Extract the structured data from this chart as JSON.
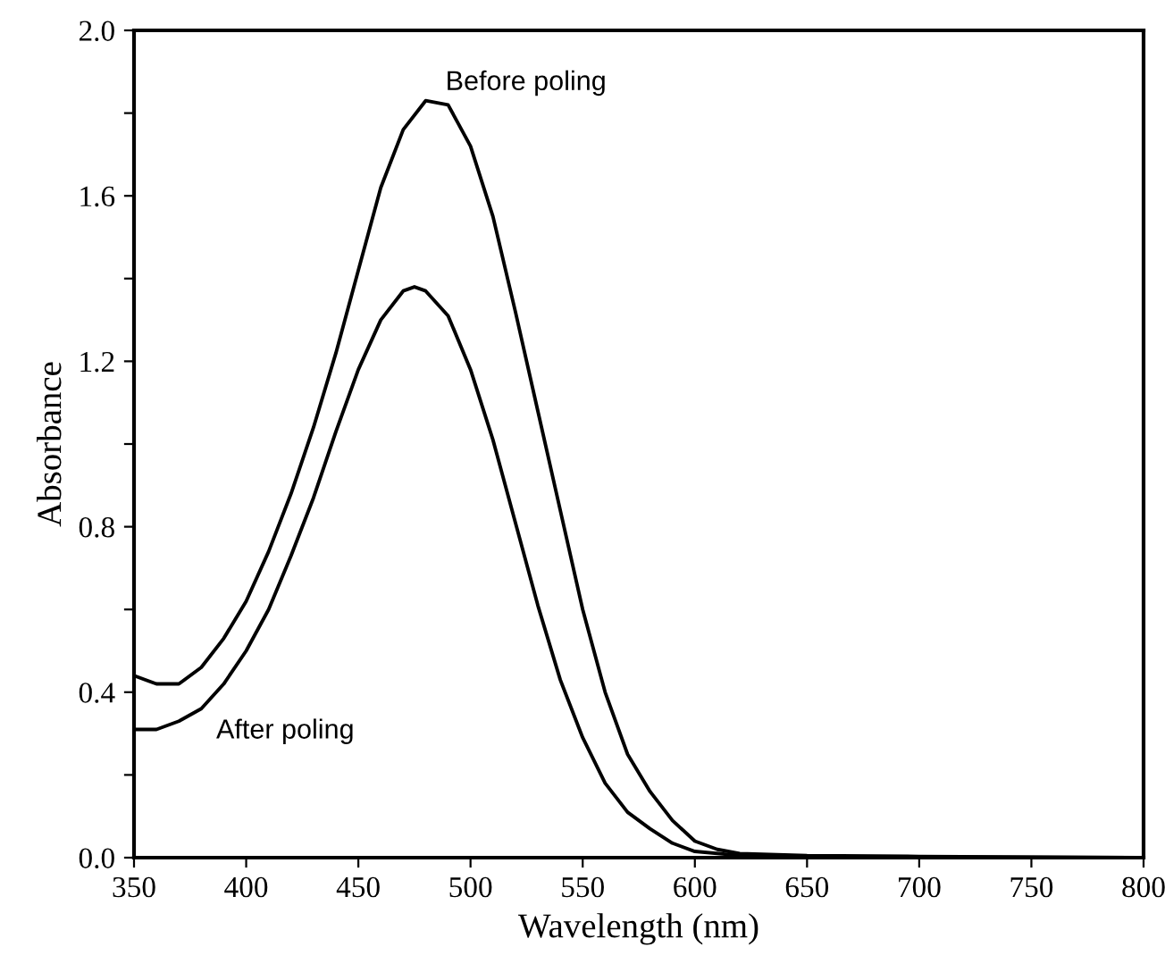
{
  "chart_data": {
    "type": "line",
    "xlabel": "Wavelength (nm)",
    "ylabel": "Absorbance",
    "xlim": [
      350,
      800
    ],
    "xticks": [
      350,
      400,
      450,
      500,
      550,
      600,
      650,
      700,
      750,
      800
    ],
    "ylim": [
      0,
      2.0
    ],
    "yticks": [
      {
        "value": 0,
        "label": "0.0"
      },
      {
        "value": 0.2,
        "label": null
      },
      {
        "value": 0.4,
        "label": "0.4"
      },
      {
        "value": 0.6,
        "label": null
      },
      {
        "value": 0.8,
        "label": "0.8"
      },
      {
        "value": 1.0,
        "label": null
      },
      {
        "value": 1.2,
        "label": "1.2"
      },
      {
        "value": 1.4,
        "label": null
      },
      {
        "value": 1.6,
        "label": "1.6"
      },
      {
        "value": 1.8,
        "label": null
      },
      {
        "value": 2.0,
        "label": "2.0"
      }
    ],
    "grid": false,
    "legend": false,
    "marker": "none",
    "line_style": "solid",
    "series": [
      {
        "name": "Before poling",
        "color": "#000000",
        "x": [
          350,
          360,
          370,
          380,
          390,
          400,
          410,
          420,
          430,
          440,
          450,
          460,
          470,
          480,
          490,
          500,
          510,
          520,
          530,
          540,
          550,
          560,
          570,
          580,
          590,
          600,
          610,
          620,
          650,
          700,
          800
        ],
        "values": [
          0.44,
          0.42,
          0.42,
          0.46,
          0.53,
          0.62,
          0.74,
          0.88,
          1.04,
          1.22,
          1.42,
          1.62,
          1.76,
          1.83,
          1.82,
          1.72,
          1.55,
          1.32,
          1.08,
          0.84,
          0.6,
          0.4,
          0.25,
          0.16,
          0.09,
          0.04,
          0.02,
          0.01,
          0.005,
          0.003,
          0.0
        ]
      },
      {
        "name": "After poling",
        "color": "#000000",
        "x": [
          350,
          360,
          370,
          380,
          390,
          400,
          410,
          420,
          430,
          440,
          450,
          460,
          470,
          475,
          480,
          490,
          500,
          510,
          520,
          530,
          540,
          550,
          560,
          570,
          580,
          590,
          600,
          620,
          650,
          800
        ],
        "values": [
          0.31,
          0.31,
          0.33,
          0.36,
          0.42,
          0.5,
          0.6,
          0.73,
          0.87,
          1.03,
          1.18,
          1.3,
          1.37,
          1.38,
          1.37,
          1.31,
          1.18,
          1.01,
          0.81,
          0.61,
          0.43,
          0.29,
          0.18,
          0.11,
          0.07,
          0.035,
          0.015,
          0.005,
          0.002,
          0.0
        ]
      }
    ]
  }
}
